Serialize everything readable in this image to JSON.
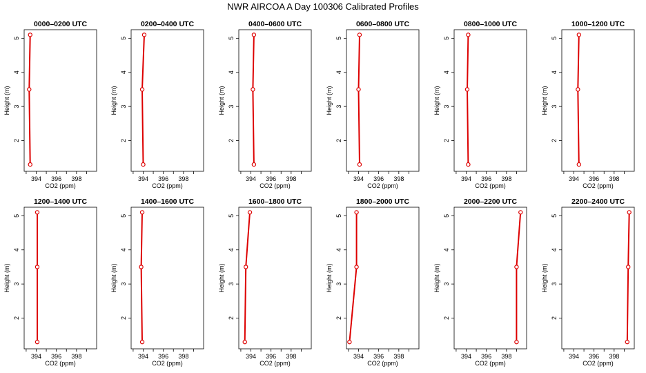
{
  "title": "NWR AIRCOA A  Day 100306  Calibrated Profiles",
  "colors": {
    "profile": "#dd0000",
    "axis": "#000000"
  },
  "chart_data": [
    {
      "type": "line",
      "title": "0000–0200 UTC",
      "xlabel": "CO2 (ppm)",
      "ylabel": "Height (m)",
      "xlim": [
        392.8,
        400.0
      ],
      "ylim": [
        1.1,
        5.25
      ],
      "xticks": [
        394,
        396,
        398
      ],
      "yticks": [
        2,
        3,
        4,
        5
      ],
      "series": [
        {
          "x": [
            393.4,
            393.3,
            393.4
          ],
          "y": [
            1.3,
            3.5,
            5.1
          ]
        }
      ]
    },
    {
      "type": "line",
      "title": "0200–0400 UTC",
      "xlabel": "CO2 (ppm)",
      "ylabel": "Height (m)",
      "xlim": [
        392.8,
        400.0
      ],
      "ylim": [
        1.1,
        5.25
      ],
      "xticks": [
        394,
        396,
        398
      ],
      "yticks": [
        2,
        3,
        4,
        5
      ],
      "series": [
        {
          "x": [
            394.0,
            393.9,
            394.1
          ],
          "y": [
            1.3,
            3.5,
            5.1
          ]
        }
      ]
    },
    {
      "type": "line",
      "title": "0400–0600 UTC",
      "xlabel": "CO2 (ppm)",
      "ylabel": "Height (m)",
      "xlim": [
        392.8,
        400.0
      ],
      "ylim": [
        1.1,
        5.25
      ],
      "xticks": [
        394,
        396,
        398
      ],
      "yticks": [
        2,
        3,
        4,
        5
      ],
      "series": [
        {
          "x": [
            394.3,
            394.2,
            394.3
          ],
          "y": [
            1.3,
            3.5,
            5.1
          ]
        }
      ]
    },
    {
      "type": "line",
      "title": "0600–0800 UTC",
      "xlabel": "CO2 (ppm)",
      "ylabel": "Height (m)",
      "xlim": [
        392.8,
        400.0
      ],
      "ylim": [
        1.1,
        5.25
      ],
      "xticks": [
        394,
        396,
        398
      ],
      "yticks": [
        2,
        3,
        4,
        5
      ],
      "series": [
        {
          "x": [
            394.1,
            394.0,
            394.1
          ],
          "y": [
            1.3,
            3.5,
            5.1
          ]
        }
      ]
    },
    {
      "type": "line",
      "title": "0800–1000 UTC",
      "xlabel": "CO2 (ppm)",
      "ylabel": "Height (m)",
      "xlim": [
        392.8,
        400.0
      ],
      "ylim": [
        1.1,
        5.25
      ],
      "xticks": [
        394,
        396,
        398
      ],
      "yticks": [
        2,
        3,
        4,
        5
      ],
      "series": [
        {
          "x": [
            394.2,
            394.1,
            394.2
          ],
          "y": [
            1.3,
            3.5,
            5.1
          ]
        }
      ]
    },
    {
      "type": "line",
      "title": "1000–1200 UTC",
      "xlabel": "CO2 (ppm)",
      "ylabel": "Height (m)",
      "xlim": [
        392.8,
        400.0
      ],
      "ylim": [
        1.1,
        5.25
      ],
      "xticks": [
        394,
        396,
        398
      ],
      "yticks": [
        2,
        3,
        4,
        5
      ],
      "series": [
        {
          "x": [
            394.5,
            394.4,
            394.5
          ],
          "y": [
            1.3,
            3.5,
            5.1
          ]
        }
      ]
    },
    {
      "type": "line",
      "title": "1200–1400 UTC",
      "xlabel": "CO2 (ppm)",
      "ylabel": "Height (m)",
      "xlim": [
        392.8,
        400.0
      ],
      "ylim": [
        1.1,
        5.25
      ],
      "xticks": [
        394,
        396,
        398
      ],
      "yticks": [
        2,
        3,
        4,
        5
      ],
      "series": [
        {
          "x": [
            394.1,
            394.1,
            394.1
          ],
          "y": [
            1.3,
            3.5,
            5.1
          ]
        }
      ]
    },
    {
      "type": "line",
      "title": "1400–1600 UTC",
      "xlabel": "CO2 (ppm)",
      "ylabel": "Height (m)",
      "xlim": [
        392.8,
        400.0
      ],
      "ylim": [
        1.1,
        5.25
      ],
      "xticks": [
        394,
        396,
        398
      ],
      "yticks": [
        2,
        3,
        4,
        5
      ],
      "series": [
        {
          "x": [
            393.9,
            393.8,
            393.9
          ],
          "y": [
            1.3,
            3.5,
            5.1
          ]
        }
      ]
    },
    {
      "type": "line",
      "title": "1600–1800 UTC",
      "xlabel": "CO2 (ppm)",
      "ylabel": "Height (m)",
      "xlim": [
        392.8,
        400.0
      ],
      "ylim": [
        1.1,
        5.25
      ],
      "xticks": [
        394,
        396,
        398
      ],
      "yticks": [
        2,
        3,
        4,
        5
      ],
      "series": [
        {
          "x": [
            393.4,
            393.5,
            393.9
          ],
          "y": [
            1.3,
            3.5,
            5.1
          ]
        }
      ]
    },
    {
      "type": "line",
      "title": "1800–2000 UTC",
      "xlabel": "CO2 (ppm)",
      "ylabel": "Height (m)",
      "xlim": [
        392.8,
        400.0
      ],
      "ylim": [
        1.1,
        5.25
      ],
      "xticks": [
        394,
        396,
        398
      ],
      "yticks": [
        2,
        3,
        4,
        5
      ],
      "series": [
        {
          "x": [
            393.1,
            393.8,
            393.8
          ],
          "y": [
            1.3,
            3.5,
            5.1
          ]
        }
      ]
    },
    {
      "type": "line",
      "title": "2000–2200 UTC",
      "xlabel": "CO2 (ppm)",
      "ylabel": "Height (m)",
      "xlim": [
        392.8,
        400.0
      ],
      "ylim": [
        1.1,
        5.25
      ],
      "xticks": [
        394,
        396,
        398
      ],
      "yticks": [
        2,
        3,
        4,
        5
      ],
      "series": [
        {
          "x": [
            399.0,
            399.0,
            399.4
          ],
          "y": [
            1.3,
            3.5,
            5.1
          ]
        }
      ]
    },
    {
      "type": "line",
      "title": "2200–2400 UTC",
      "xlabel": "CO2 (ppm)",
      "ylabel": "Height (m)",
      "xlim": [
        392.8,
        400.0
      ],
      "ylim": [
        1.1,
        5.25
      ],
      "xticks": [
        394,
        396,
        398
      ],
      "yticks": [
        2,
        3,
        4,
        5
      ],
      "series": [
        {
          "x": [
            399.3,
            399.4,
            399.5
          ],
          "y": [
            1.3,
            3.5,
            5.1
          ]
        }
      ]
    }
  ]
}
